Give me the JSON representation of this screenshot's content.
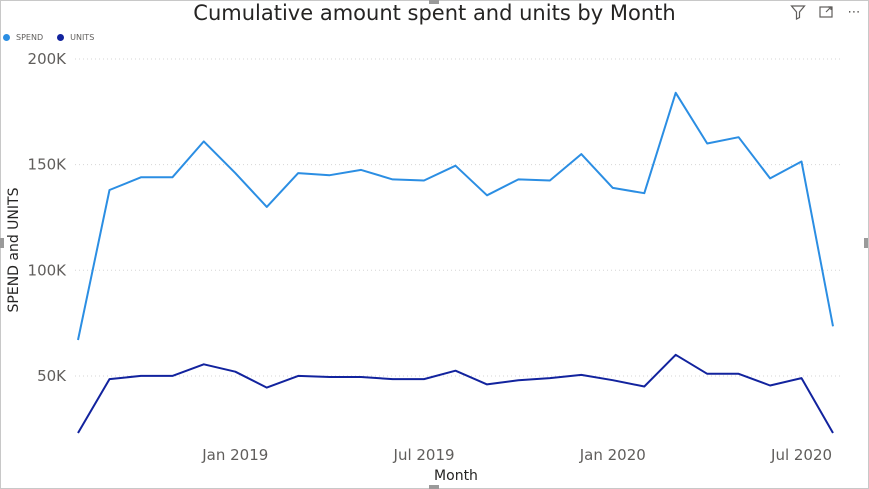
{
  "toolbar": {
    "filter_icon": "filter-icon",
    "focus_icon": "focus-mode-icon",
    "more_icon": "more-options-icon",
    "more_glyph": "⋯"
  },
  "chart_data": {
    "type": "line",
    "title": "Cumulative amount spent and units by Month",
    "xlabel": "Month",
    "ylabel": "SPEND and UNITS",
    "x": [
      "2018-08",
      "2018-09",
      "2018-10",
      "2018-11",
      "2018-12",
      "2019-01",
      "2019-02",
      "2019-03",
      "2019-04",
      "2019-05",
      "2019-06",
      "2019-07",
      "2019-08",
      "2019-09",
      "2019-10",
      "2019-11",
      "2019-12",
      "2020-01",
      "2020-02",
      "2020-03",
      "2020-04",
      "2020-05",
      "2020-06",
      "2020-07",
      "2020-08"
    ],
    "x_tick_labels": [
      {
        "label": "Jan 2019",
        "x": "2019-01"
      },
      {
        "label": "Jul 2019",
        "x": "2019-07"
      },
      {
        "label": "Jan 2020",
        "x": "2020-01"
      },
      {
        "label": "Jul 2020",
        "x": "2020-07"
      }
    ],
    "y_ticks": [
      {
        "label": "50K",
        "value": 50000
      },
      {
        "label": "100K",
        "value": 100000
      },
      {
        "label": "150K",
        "value": 150000
      },
      {
        "label": "200K",
        "value": 200000
      }
    ],
    "ylim": [
      23000,
      200000
    ],
    "grid": "horizontal dotted",
    "legend_position": "top-left",
    "series": [
      {
        "name": "SPEND",
        "color": "#2b8ee3",
        "values": [
          67000,
          138000,
          144000,
          144000,
          161000,
          146000,
          130000,
          146000,
          145000,
          147500,
          143000,
          142500,
          149500,
          135500,
          143000,
          142500,
          155000,
          139000,
          136500,
          184000,
          160000,
          163000,
          143500,
          151500,
          73500
        ]
      },
      {
        "name": "UNITS",
        "color": "#12239e",
        "values": [
          23000,
          48500,
          50000,
          50000,
          55500,
          52000,
          44500,
          50000,
          49500,
          49500,
          48500,
          48500,
          52500,
          46000,
          48000,
          49000,
          50500,
          48000,
          45000,
          60000,
          51000,
          51000,
          45500,
          49000,
          23000
        ]
      }
    ]
  }
}
